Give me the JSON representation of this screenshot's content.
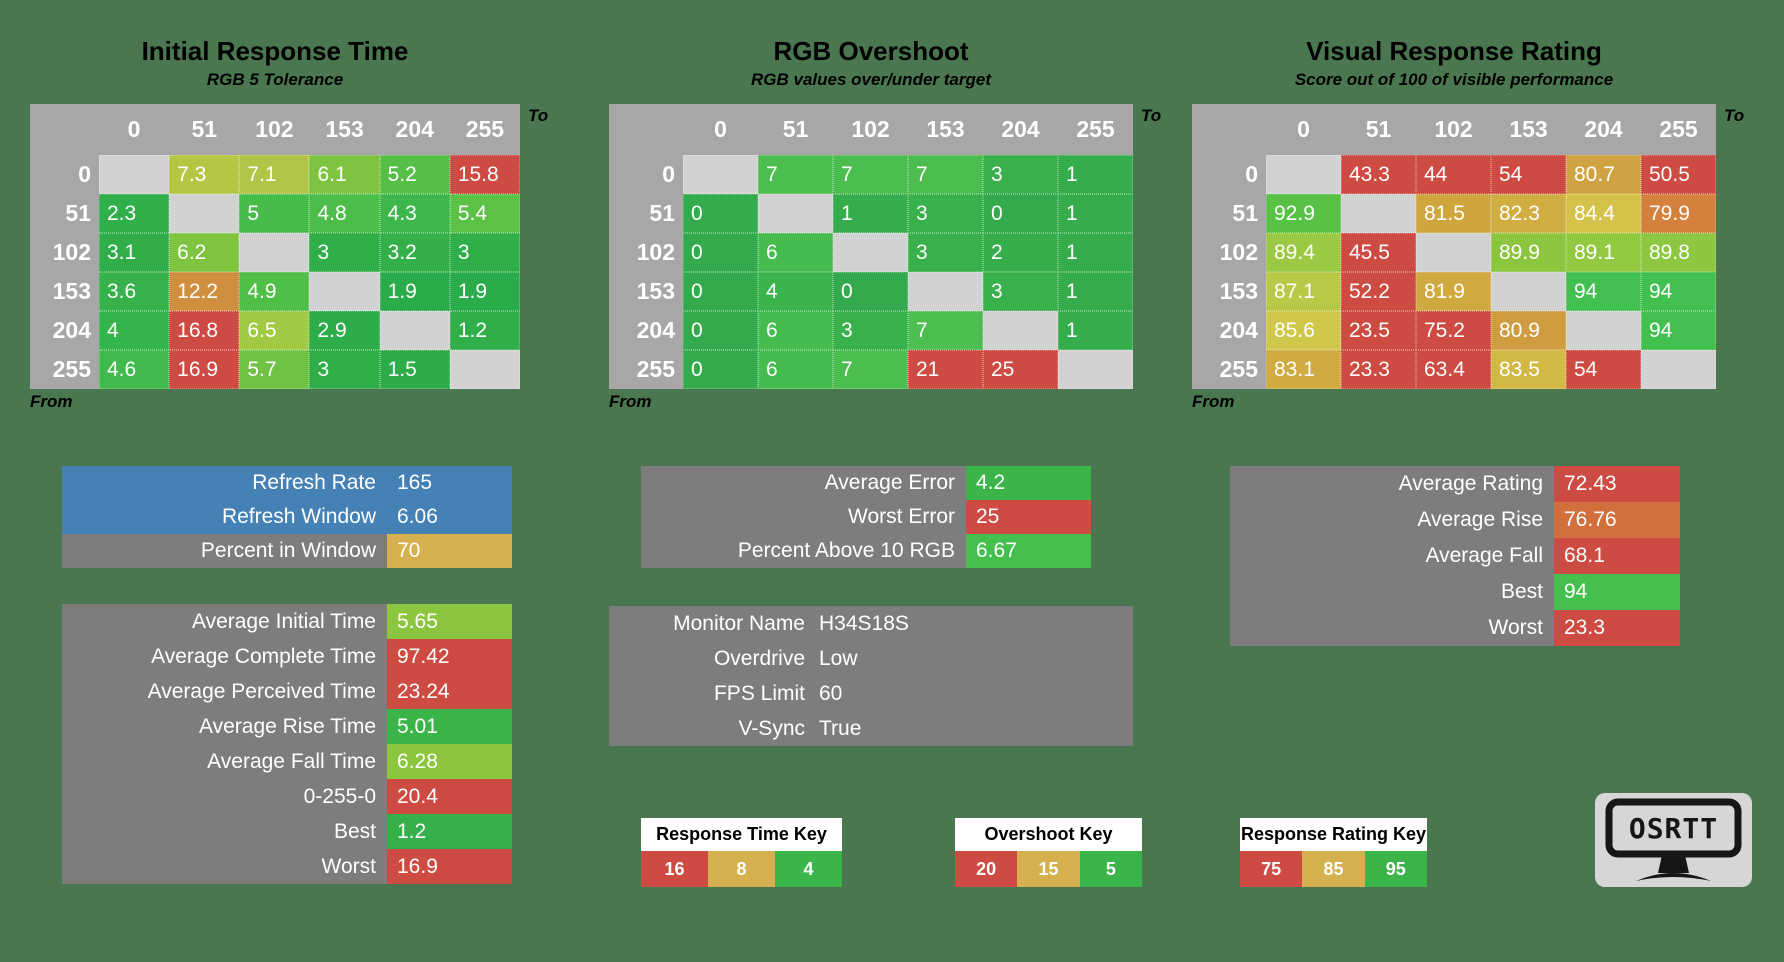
{
  "background_color": "#4a774f",
  "palette": {
    "header_gray": "#a7a7a7",
    "diagonal_gray": "#d2d2d2",
    "label_gray": "#7d7d7d",
    "blue": "#4581b4",
    "red": "#cd4b42",
    "green": "#3bb54a",
    "bright_green": "#45c04f",
    "yellow_green": "#8cc63f",
    "gold": "#d4b14e",
    "orange": "#d2773d"
  },
  "chart_data": [
    {
      "type": "heatmap",
      "title": "Initial Response Time",
      "subtitle": "RGB 5 Tolerance",
      "x_axis_label": "To",
      "y_axis_label": "From",
      "x": [
        "0",
        "51",
        "102",
        "153",
        "204",
        "255"
      ],
      "y": [
        "0",
        "51",
        "102",
        "153",
        "204",
        "255"
      ],
      "values": [
        [
          null,
          7.3,
          7.1,
          6.1,
          5.2,
          15.8
        ],
        [
          2.3,
          null,
          5,
          4.8,
          4.3,
          5.4
        ],
        [
          3.1,
          6.2,
          null,
          3,
          3.2,
          3
        ],
        [
          3.6,
          12.2,
          4.9,
          null,
          1.9,
          1.9
        ],
        [
          4,
          16.8,
          6.5,
          2.9,
          null,
          1.2
        ],
        [
          4.6,
          16.9,
          5.7,
          3,
          1.5,
          null
        ]
      ],
      "cell_colors": [
        [
          null,
          "#b4c644",
          "#b2c546",
          "#7fc440",
          "#55bf48",
          "#cd4b42"
        ],
        [
          "#2fae4a",
          null,
          "#47bc4b",
          "#4dbd4a",
          "#3db74b",
          "#5cc147"
        ],
        [
          "#31ae4a",
          "#7ec43f",
          null,
          "#2fae4a",
          "#34b04a",
          "#30ae4a"
        ],
        [
          "#37b14b",
          "#d08f3e",
          "#50bf48",
          null,
          "#2bac4b",
          "#2bac4b"
        ],
        [
          "#33b44c",
          "#cd4b42",
          "#a0ca43",
          "#2dad4a",
          null,
          "#30ae4a"
        ],
        [
          "#40ba4c",
          "#cd4b42",
          "#6fc243",
          "#30ae4a",
          "#2cad4a",
          null
        ]
      ],
      "key_thresholds": [
        16,
        8,
        4
      ]
    },
    {
      "type": "heatmap",
      "title": "RGB Overshoot",
      "subtitle": "RGB values over/under target",
      "x_axis_label": "To",
      "y_axis_label": "From",
      "x": [
        "0",
        "51",
        "102",
        "153",
        "204",
        "255"
      ],
      "y": [
        "0",
        "51",
        "102",
        "153",
        "204",
        "255"
      ],
      "values": [
        [
          null,
          7,
          7,
          7,
          3,
          1
        ],
        [
          0,
          null,
          1,
          3,
          0,
          1
        ],
        [
          0,
          6,
          null,
          3,
          2,
          1
        ],
        [
          0,
          4,
          0,
          null,
          3,
          1
        ],
        [
          0,
          6,
          3,
          7,
          null,
          1
        ],
        [
          0,
          6,
          7,
          21,
          25,
          null
        ]
      ],
      "cell_colors": [
        [
          null,
          "#4cbe50",
          "#4cbe50",
          "#4cbe50",
          "#38b04c",
          "#35ad4c"
        ],
        [
          "#33ab4c",
          null,
          "#35ad4c",
          "#38b04c",
          "#33ab4c",
          "#35ad4c"
        ],
        [
          "#33ab4c",
          "#46bb4e",
          null,
          "#38b04c",
          "#36ae4c",
          "#35ad4c"
        ],
        [
          "#33ab4c",
          "#3bb44d",
          "#33ab4c",
          null,
          "#38b04c",
          "#35ad4c"
        ],
        [
          "#33ab4c",
          "#46bb4e",
          "#38b04c",
          "#4cbe50",
          null,
          "#35ad4c"
        ],
        [
          "#33ab4c",
          "#46bb4e",
          "#4cbe50",
          "#cd4b42",
          "#cd4b42",
          null
        ]
      ],
      "key_thresholds": [
        20,
        15,
        5
      ]
    },
    {
      "type": "heatmap",
      "title": "Visual Response Rating",
      "subtitle": "Score out of 100 of visible performance",
      "x_axis_label": "To",
      "y_axis_label": "From",
      "x": [
        "0",
        "51",
        "102",
        "153",
        "204",
        "255"
      ],
      "y": [
        "0",
        "51",
        "102",
        "153",
        "204",
        "255"
      ],
      "values": [
        [
          null,
          43.3,
          44,
          54,
          80.7,
          50.5
        ],
        [
          92.9,
          null,
          81.5,
          82.3,
          84.4,
          79.9
        ],
        [
          89.4,
          45.5,
          null,
          89.9,
          89.1,
          89.8
        ],
        [
          87.1,
          52.2,
          81.9,
          null,
          94,
          94
        ],
        [
          85.6,
          23.5,
          75.2,
          80.9,
          null,
          94
        ],
        [
          83.1,
          23.3,
          63.4,
          83.5,
          54,
          null
        ]
      ],
      "cell_colors": [
        [
          null,
          "#cd4b42",
          "#cd4b42",
          "#cd4b42",
          "#d0a342",
          "#cd4b42"
        ],
        [
          "#57c246",
          null,
          "#cfa63e",
          "#d0ae41",
          "#d4c24a",
          "#d3813d"
        ],
        [
          "#9cc944",
          "#cd4b42",
          null,
          "#8cc63f",
          "#93c841",
          "#8dc640"
        ],
        [
          "#b9c847",
          "#cd4b42",
          "#d0aa40",
          null,
          "#42c04f",
          "#42c04f"
        ],
        [
          "#d0c84c",
          "#cd4b42",
          "#cd4b42",
          "#d09c40",
          null,
          "#42c04f"
        ],
        [
          "#cfab41",
          "#cd4b42",
          "#cd4b42",
          "#d2b945",
          "#cd4b42",
          null
        ]
      ],
      "key_thresholds": [
        75,
        85,
        95
      ]
    }
  ],
  "stat_blocks": {
    "refresh": {
      "rows": [
        {
          "label": "Refresh Rate",
          "value": "165",
          "row_bg": "#4581b4"
        },
        {
          "label": "Refresh Window",
          "value": "6.06",
          "row_bg": "#4581b4"
        },
        {
          "label": "Percent in Window",
          "value": "70",
          "label_bg": "#7d7d7d",
          "value_bg": "#d4b14e"
        }
      ]
    },
    "averages": {
      "rows": [
        {
          "label": "Average Initial Time",
          "value": "5.65",
          "label_bg": "#7d7d7d",
          "value_bg": "#8cc63f"
        },
        {
          "label": "Average Complete Time",
          "value": "97.42",
          "label_bg": "#7d7d7d",
          "value_bg": "#cd4b42"
        },
        {
          "label": "Average Perceived Time",
          "value": "23.24",
          "label_bg": "#7d7d7d",
          "value_bg": "#cd4b42"
        },
        {
          "label": "Average Rise Time",
          "value": "5.01",
          "label_bg": "#7d7d7d",
          "value_bg": "#3bb54a"
        },
        {
          "label": "Average Fall Time",
          "value": "6.28",
          "label_bg": "#7d7d7d",
          "value_bg": "#8cc63f"
        },
        {
          "label": "0-255-0",
          "value": "20.4",
          "label_bg": "#7d7d7d",
          "value_bg": "#cd4b42"
        },
        {
          "label": "Best",
          "value": "1.2",
          "label_bg": "#7d7d7d",
          "value_bg": "#35b14b"
        },
        {
          "label": "Worst",
          "value": "16.9",
          "label_bg": "#7d7d7d",
          "value_bg": "#cd4b42"
        }
      ]
    },
    "error": {
      "rows": [
        {
          "label": "Average Error",
          "value": "4.2",
          "label_bg": "#7d7d7d",
          "value_bg": "#3bb54a"
        },
        {
          "label": "Worst Error",
          "value": "25",
          "label_bg": "#7d7d7d",
          "value_bg": "#cd4b42"
        },
        {
          "label": "Percent Above 10 RGB",
          "value": "6.67",
          "label_bg": "#7d7d7d",
          "value_bg": "#45c04f"
        }
      ]
    },
    "monitor": {
      "rows": [
        {
          "label": "Monitor Name",
          "value": "H34S18S"
        },
        {
          "label": "Overdrive",
          "value": "Low"
        },
        {
          "label": "FPS Limit",
          "value": "60"
        },
        {
          "label": "V-Sync",
          "value": "True"
        }
      ]
    },
    "rating": {
      "rows": [
        {
          "label": "Average Rating",
          "value": "72.43",
          "label_bg": "#7d7d7d",
          "value_bg": "#cd4b42"
        },
        {
          "label": "Average Rise",
          "value": "76.76",
          "label_bg": "#7d7d7d",
          "value_bg": "#d2703d"
        },
        {
          "label": "Average Fall",
          "value": "68.1",
          "label_bg": "#7d7d7d",
          "value_bg": "#cd4b42"
        },
        {
          "label": "Best",
          "value": "94",
          "label_bg": "#7d7d7d",
          "value_bg": "#45c04f"
        },
        {
          "label": "Worst",
          "value": "23.3",
          "label_bg": "#7d7d7d",
          "value_bg": "#cd4b42"
        }
      ]
    }
  },
  "keys": [
    {
      "title": "Response Time Key",
      "cells": [
        {
          "label": "16",
          "color": "#cd4b42"
        },
        {
          "label": "8",
          "color": "#d4b14e"
        },
        {
          "label": "4",
          "color": "#3bb54a"
        }
      ]
    },
    {
      "title": "Overshoot Key",
      "cells": [
        {
          "label": "20",
          "color": "#cd4b42"
        },
        {
          "label": "15",
          "color": "#d4b14e"
        },
        {
          "label": "5",
          "color": "#3bb54a"
        }
      ]
    },
    {
      "title": "Response Rating Key",
      "cells": [
        {
          "label": "75",
          "color": "#cd4b42"
        },
        {
          "label": "85",
          "color": "#d4b14e"
        },
        {
          "label": "95",
          "color": "#3bb54a"
        }
      ]
    }
  ],
  "logo_text": "OSRTT"
}
